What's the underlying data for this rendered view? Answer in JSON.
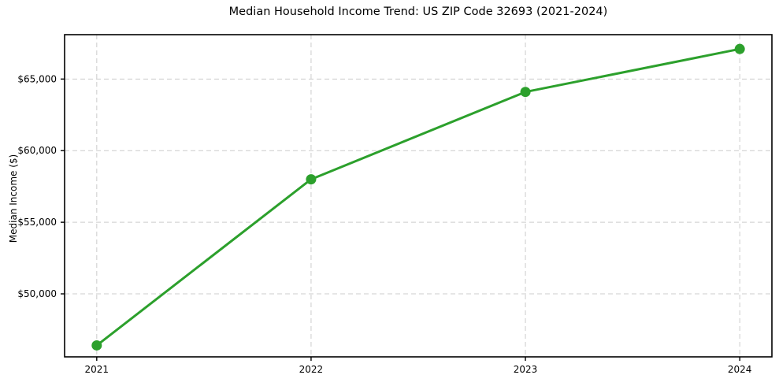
{
  "chart_data": {
    "type": "line",
    "title": "Median Household Income Trend: US ZIP Code 32693 (2021-2024)",
    "xlabel": "",
    "ylabel": "Median Income ($)",
    "x": [
      2021,
      2022,
      2023,
      2024
    ],
    "series": [
      {
        "name": "Median Household Income",
        "values": [
          46400,
          58000,
          64100,
          67100
        ]
      }
    ],
    "xticks": {
      "values": [
        2021,
        2022,
        2023,
        2024
      ],
      "labels": [
        "2021",
        "2022",
        "2023",
        "2024"
      ]
    },
    "yticks": {
      "values": [
        50000,
        55000,
        60000,
        65000
      ],
      "labels": [
        "$50,000",
        "$55,000",
        "$60,000",
        "$65,000"
      ]
    },
    "xlim": [
      2020.85,
      2024.15
    ],
    "ylim": [
      45600,
      68100
    ],
    "grid": "dashed",
    "legend": "none",
    "colors": {
      "line": "#2ca02c",
      "marker": "#2ca02c",
      "grid": "#cccccc",
      "spine": "#000000",
      "background": "#ffffff"
    }
  }
}
